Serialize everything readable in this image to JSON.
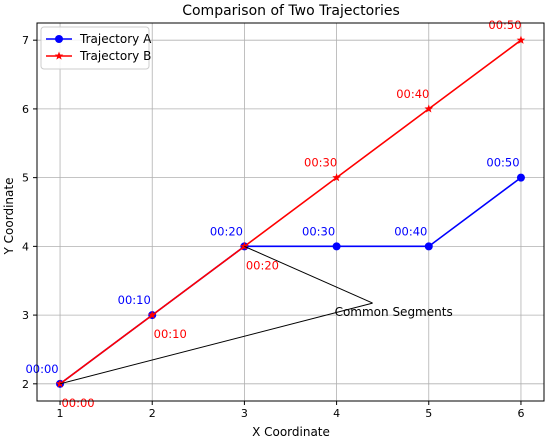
{
  "chart_data": {
    "type": "line",
    "title": "Comparison of Two Trajectories",
    "xlabel": "X Coordinate",
    "ylabel": "Y Coordinate",
    "xlim": [
      0.75,
      6.25
    ],
    "ylim": [
      1.75,
      7.25
    ],
    "xticks": [
      "1",
      "2",
      "3",
      "4",
      "5",
      "6"
    ],
    "yticks": [
      "2",
      "3",
      "4",
      "5",
      "6",
      "7"
    ],
    "grid": true,
    "legend_position": "top-left",
    "series": [
      {
        "name": "Trajectory A",
        "color": "#0000ff",
        "marker": "circle",
        "x": [
          1,
          2,
          3,
          4,
          5,
          6
        ],
        "y": [
          2,
          3,
          4,
          4,
          4,
          5
        ],
        "labels": [
          "00:00",
          "00:10",
          "00:20",
          "00:30",
          "00:40",
          "00:50"
        ]
      },
      {
        "name": "Trajectory B",
        "color": "#ff0000",
        "marker": "star",
        "x": [
          1,
          2,
          3,
          4,
          5,
          6
        ],
        "y": [
          2,
          3,
          4,
          5,
          6,
          7
        ],
        "labels": [
          "00:00",
          "00:10",
          "00:20",
          "00:30",
          "00:40",
          "00:50"
        ]
      }
    ],
    "annotation": {
      "text": "Common Segments",
      "text_x": 4.0,
      "text_y": 3.0,
      "targets": [
        [
          1,
          2
        ],
        [
          3,
          4
        ]
      ]
    }
  }
}
